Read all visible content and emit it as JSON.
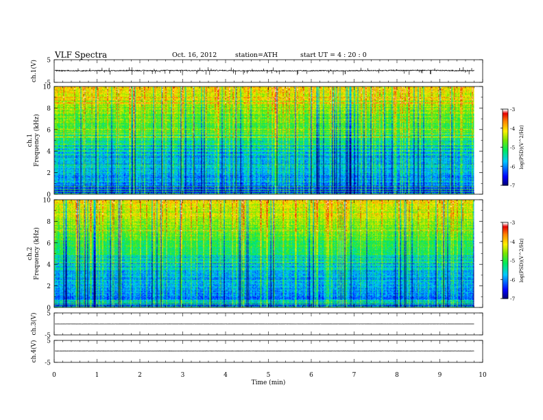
{
  "header": {
    "title": "VLF  Spectra",
    "date": "Oct. 16, 2012",
    "station": "station=ATH",
    "start": "start  UT  =   4  : 20 : 0"
  },
  "chart_data": [
    {
      "type": "line",
      "ylabel": "ch.1(V)",
      "ylim": [
        -5,
        5
      ],
      "yticks": [
        "5",
        "-5"
      ],
      "series": [
        {
          "baseline": 0.2,
          "noise_amplitude": 0.45,
          "spike_amplitude": 1.0
        }
      ]
    },
    {
      "type": "heatmap",
      "ylabel": "ch.1\nFrequency  (kHz)",
      "ylim": [
        0,
        10
      ],
      "yticks": [
        "0",
        "2",
        "4",
        "6",
        "8",
        "10"
      ],
      "colorbar": {
        "label": "log(PSD)(V^2/Hz)",
        "range": [
          -7,
          -3
        ],
        "ticks": [
          "-3",
          "-4",
          "-5",
          "-6",
          "-7"
        ]
      }
    },
    {
      "type": "heatmap",
      "ylabel": "ch.2\nFrequency  (kHz)",
      "ylim": [
        0,
        10
      ],
      "yticks": [
        "0",
        "2",
        "4",
        "6",
        "8",
        "10"
      ],
      "colorbar": {
        "label": "log(PSD)(V^2/Hz)",
        "range": [
          -7,
          -3
        ],
        "ticks": [
          "-3",
          "-4",
          "-5",
          "-6",
          "-7"
        ]
      }
    },
    {
      "type": "line",
      "ylabel": "ch.3(V)",
      "ylim": [
        -5,
        5
      ],
      "yticks": [
        "5",
        "-5"
      ],
      "series": [
        {
          "baseline": 0.0,
          "noise_amplitude": 0.03,
          "spike_amplitude": 0.1
        }
      ]
    },
    {
      "type": "line",
      "ylabel": "ch.4(V)",
      "ylim": [
        -5,
        5
      ],
      "yticks": [
        "5",
        "-5"
      ],
      "series": [
        {
          "baseline": 0.2,
          "noise_amplitude": 0.12,
          "spike_amplitude": 0.15
        }
      ]
    }
  ],
  "x_axis": {
    "label": "Time  (min)",
    "range": [
      0,
      10
    ],
    "data_end": 9.8,
    "ticks": [
      "0",
      "1",
      "2",
      "3",
      "4",
      "5",
      "6",
      "7",
      "8",
      "9",
      "10"
    ]
  }
}
